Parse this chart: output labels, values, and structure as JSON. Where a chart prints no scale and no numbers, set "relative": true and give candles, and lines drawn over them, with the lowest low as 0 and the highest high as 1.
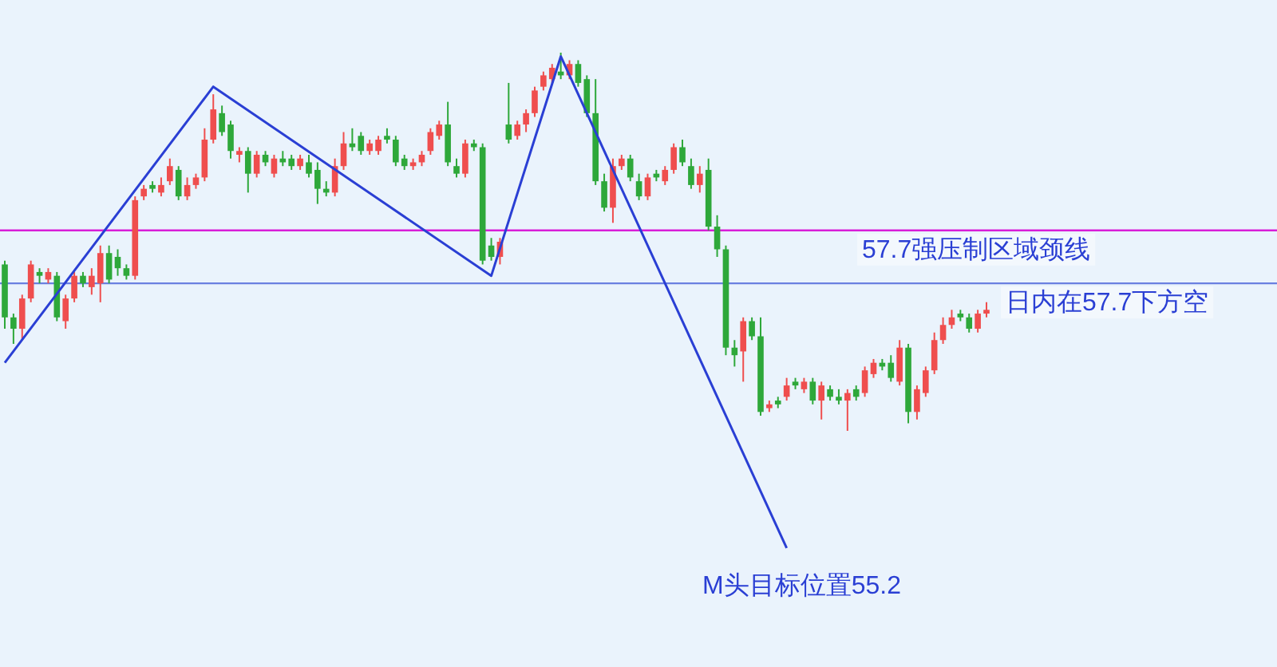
{
  "chart_data": {
    "type": "candlestick",
    "relative": true,
    "categories": [
      null,
      null,
      null,
      null,
      null,
      null,
      null,
      null,
      null,
      null,
      null,
      null,
      null,
      null,
      null,
      null,
      null,
      null,
      null,
      null,
      null,
      null,
      null,
      null,
      null,
      null,
      null,
      null,
      null,
      null,
      null,
      null,
      null,
      null,
      null,
      null,
      null,
      null,
      null,
      null,
      null,
      null,
      null,
      null,
      null,
      null,
      null,
      null,
      null,
      null,
      null,
      null,
      null,
      null,
      null,
      null,
      null,
      null,
      null,
      null,
      null,
      null,
      null,
      null,
      null,
      null,
      null,
      null,
      null,
      null,
      null,
      null,
      null,
      null,
      null,
      null,
      null,
      null,
      null,
      null,
      null,
      null,
      null,
      null,
      null,
      null,
      null,
      null,
      null,
      null,
      null,
      null,
      null,
      null,
      null,
      null,
      null,
      null,
      null,
      null,
      null,
      null,
      null,
      null,
      null,
      null,
      null,
      null,
      null,
      null,
      null,
      null,
      null,
      null
    ],
    "ohlc": [
      [
        0.44,
        0.45,
        0.27,
        0.3
      ],
      [
        0.3,
        0.31,
        0.23,
        0.27
      ],
      [
        0.27,
        0.36,
        0.24,
        0.35
      ],
      [
        0.35,
        0.45,
        0.34,
        0.44
      ],
      [
        0.42,
        0.43,
        0.39,
        0.41
      ],
      [
        0.4,
        0.43,
        0.39,
        0.42
      ],
      [
        0.41,
        0.42,
        0.29,
        0.3
      ],
      [
        0.29,
        0.36,
        0.27,
        0.35
      ],
      [
        0.35,
        0.42,
        0.34,
        0.41
      ],
      [
        0.41,
        0.42,
        0.38,
        0.39
      ],
      [
        0.38,
        0.43,
        0.36,
        0.41
      ],
      [
        0.39,
        0.49,
        0.34,
        0.47
      ],
      [
        0.47,
        0.49,
        0.39,
        0.4
      ],
      [
        0.46,
        0.48,
        0.41,
        0.43
      ],
      [
        0.43,
        0.44,
        0.4,
        0.41
      ],
      [
        0.41,
        0.62,
        0.4,
        0.61
      ],
      [
        0.62,
        0.65,
        0.61,
        0.64
      ],
      [
        0.65,
        0.66,
        0.63,
        0.64
      ],
      [
        0.63,
        0.67,
        0.62,
        0.65
      ],
      [
        0.66,
        0.72,
        0.65,
        0.7
      ],
      [
        0.69,
        0.7,
        0.61,
        0.62
      ],
      [
        0.62,
        0.67,
        0.61,
        0.65
      ],
      [
        0.65,
        0.68,
        0.64,
        0.67
      ],
      [
        0.67,
        0.8,
        0.66,
        0.77
      ],
      [
        0.77,
        0.89,
        0.76,
        0.85
      ],
      [
        0.84,
        0.86,
        0.78,
        0.79
      ],
      [
        0.81,
        0.82,
        0.72,
        0.74
      ],
      [
        0.73,
        0.75,
        0.71,
        0.74
      ],
      [
        0.74,
        0.75,
        0.63,
        0.68
      ],
      [
        0.68,
        0.74,
        0.67,
        0.73
      ],
      [
        0.73,
        0.74,
        0.7,
        0.71
      ],
      [
        0.68,
        0.73,
        0.67,
        0.72
      ],
      [
        0.72,
        0.74,
        0.7,
        0.71
      ],
      [
        0.72,
        0.73,
        0.69,
        0.7
      ],
      [
        0.7,
        0.73,
        0.69,
        0.72
      ],
      [
        0.71,
        0.73,
        0.67,
        0.68
      ],
      [
        0.69,
        0.71,
        0.6,
        0.64
      ],
      [
        0.64,
        0.66,
        0.62,
        0.63
      ],
      [
        0.63,
        0.72,
        0.62,
        0.7
      ],
      [
        0.7,
        0.79,
        0.69,
        0.76
      ],
      [
        0.76,
        0.8,
        0.74,
        0.75
      ],
      [
        0.78,
        0.79,
        0.73,
        0.74
      ],
      [
        0.74,
        0.77,
        0.73,
        0.76
      ],
      [
        0.74,
        0.78,
        0.73,
        0.77
      ],
      [
        0.78,
        0.8,
        0.76,
        0.77
      ],
      [
        0.77,
        0.78,
        0.7,
        0.71
      ],
      [
        0.72,
        0.73,
        0.69,
        0.7
      ],
      [
        0.7,
        0.72,
        0.69,
        0.71
      ],
      [
        0.71,
        0.74,
        0.7,
        0.73
      ],
      [
        0.74,
        0.8,
        0.73,
        0.79
      ],
      [
        0.78,
        0.82,
        0.77,
        0.81
      ],
      [
        0.81,
        0.87,
        0.7,
        0.71
      ],
      [
        0.7,
        0.72,
        0.67,
        0.68
      ],
      [
        0.68,
        0.77,
        0.67,
        0.76
      ],
      [
        0.76,
        0.77,
        0.74,
        0.75
      ],
      [
        0.75,
        0.76,
        0.44,
        0.45
      ],
      [
        0.49,
        0.51,
        0.45,
        0.46
      ],
      [
        0.46,
        0.51,
        0.44,
        0.5
      ],
      [
        0.81,
        0.92,
        0.76,
        0.77
      ],
      [
        0.78,
        0.82,
        0.77,
        0.81
      ],
      [
        0.81,
        0.85,
        0.79,
        0.84
      ],
      [
        0.84,
        0.91,
        0.83,
        0.9
      ],
      [
        0.91,
        0.95,
        0.9,
        0.94
      ],
      [
        0.93,
        0.97,
        0.92,
        0.96
      ],
      [
        0.95,
        1,
        0.93,
        0.94
      ],
      [
        0.94,
        0.98,
        0.93,
        0.97
      ],
      [
        0.97,
        0.98,
        0.91,
        0.92
      ],
      [
        0.93,
        0.94,
        0.83,
        0.84
      ],
      [
        0.84,
        0.93,
        0.65,
        0.66
      ],
      [
        0.66,
        0.68,
        0.58,
        0.59
      ],
      [
        0.59,
        0.72,
        0.55,
        0.7
      ],
      [
        0.7,
        0.73,
        0.69,
        0.72
      ],
      [
        0.72,
        0.73,
        0.66,
        0.67
      ],
      [
        0.66,
        0.68,
        0.61,
        0.62
      ],
      [
        0.62,
        0.68,
        0.61,
        0.67
      ],
      [
        0.68,
        0.69,
        0.66,
        0.67
      ],
      [
        0.66,
        0.7,
        0.65,
        0.69
      ],
      [
        0.69,
        0.76,
        0.68,
        0.75
      ],
      [
        0.75,
        0.77,
        0.7,
        0.71
      ],
      [
        0.7,
        0.72,
        0.64,
        0.65
      ],
      [
        0.65,
        0.7,
        0.63,
        0.68
      ],
      [
        0.69,
        0.72,
        0.53,
        0.54
      ],
      [
        0.54,
        0.57,
        0.46,
        0.48
      ],
      [
        0.48,
        0.49,
        0.2,
        0.22
      ],
      [
        0.22,
        0.24,
        0.17,
        0.2
      ],
      [
        0.21,
        0.3,
        0.13,
        0.29
      ],
      [
        0.29,
        0.3,
        0.24,
        0.25
      ],
      [
        0.25,
        0.3,
        0.04,
        0.05
      ],
      [
        0.06,
        0.08,
        0.05,
        0.07
      ],
      [
        0.08,
        0.09,
        0.06,
        0.07
      ],
      [
        0.09,
        0.14,
        0.08,
        0.12
      ],
      [
        0.13,
        0.14,
        0.11,
        0.12
      ],
      [
        0.11,
        0.14,
        0.1,
        0.13
      ],
      [
        0.13,
        0.14,
        0.07,
        0.08
      ],
      [
        0.08,
        0.13,
        0.03,
        0.12
      ],
      [
        0.11,
        0.12,
        0.08,
        0.09
      ],
      [
        0.09,
        0.11,
        0.07,
        0.08
      ],
      [
        0.08,
        0.11,
        0,
        0.1
      ],
      [
        0.11,
        0.12,
        0.08,
        0.09
      ],
      [
        0.1,
        0.17,
        0.09,
        0.16
      ],
      [
        0.15,
        0.19,
        0.14,
        0.18
      ],
      [
        0.18,
        0.19,
        0.16,
        0.17
      ],
      [
        0.18,
        0.2,
        0.13,
        0.14
      ],
      [
        0.13,
        0.24,
        0.12,
        0.22
      ],
      [
        0.22,
        0.23,
        0.02,
        0.05
      ],
      [
        0.05,
        0.12,
        0.03,
        0.11
      ],
      [
        0.1,
        0.17,
        0.09,
        0.16
      ],
      [
        0.16,
        0.26,
        0.15,
        0.24
      ],
      [
        0.24,
        0.3,
        0.23,
        0.28
      ],
      [
        0.28,
        0.32,
        0.27,
        0.3
      ],
      [
        0.31,
        0.32,
        0.29,
        0.3
      ],
      [
        0.3,
        0.31,
        0.26,
        0.27
      ],
      [
        0.27,
        0.32,
        0.26,
        0.31
      ],
      [
        0.31,
        0.34,
        0.3,
        0.32
      ]
    ],
    "series": [
      {
        "type": "line",
        "color": "#2a3fd4",
        "values": [
          0.18,
          null,
          null,
          null,
          null,
          null,
          null,
          null,
          null,
          null,
          null,
          null,
          null,
          null,
          null,
          null,
          null,
          null,
          null,
          null,
          null,
          null,
          null,
          null,
          0.91,
          null,
          null,
          null,
          null,
          null,
          null,
          null,
          null,
          null,
          null,
          null,
          null,
          null,
          null,
          null,
          null,
          null,
          null,
          null,
          null,
          null,
          null,
          null,
          null,
          null,
          null,
          null,
          null,
          null,
          null,
          null,
          0.41,
          null,
          null,
          null,
          null,
          null,
          null,
          null,
          0.99,
          null,
          null,
          null,
          null,
          null,
          null,
          null,
          null,
          null,
          null,
          null,
          null,
          null,
          null,
          null,
          null,
          null,
          null,
          null,
          null,
          null,
          null,
          null,
          null,
          null,
          -0.31,
          null,
          null,
          null,
          null,
          null,
          null,
          null,
          null,
          null,
          null,
          null,
          null,
          null,
          null,
          null,
          null,
          null,
          null,
          null,
          null,
          null,
          null,
          null
        ]
      }
    ],
    "ref_lines": [
      {
        "axis": "y",
        "value": 0.53,
        "label": "57.7强压制区域颈线",
        "color": "#d81ed8"
      },
      {
        "axis": "y",
        "value": 0.39,
        "label": "日内在57.7下方空",
        "color": "#6a80e0"
      }
    ],
    "annotations": [
      "M头目标位置55.2"
    ]
  }
}
